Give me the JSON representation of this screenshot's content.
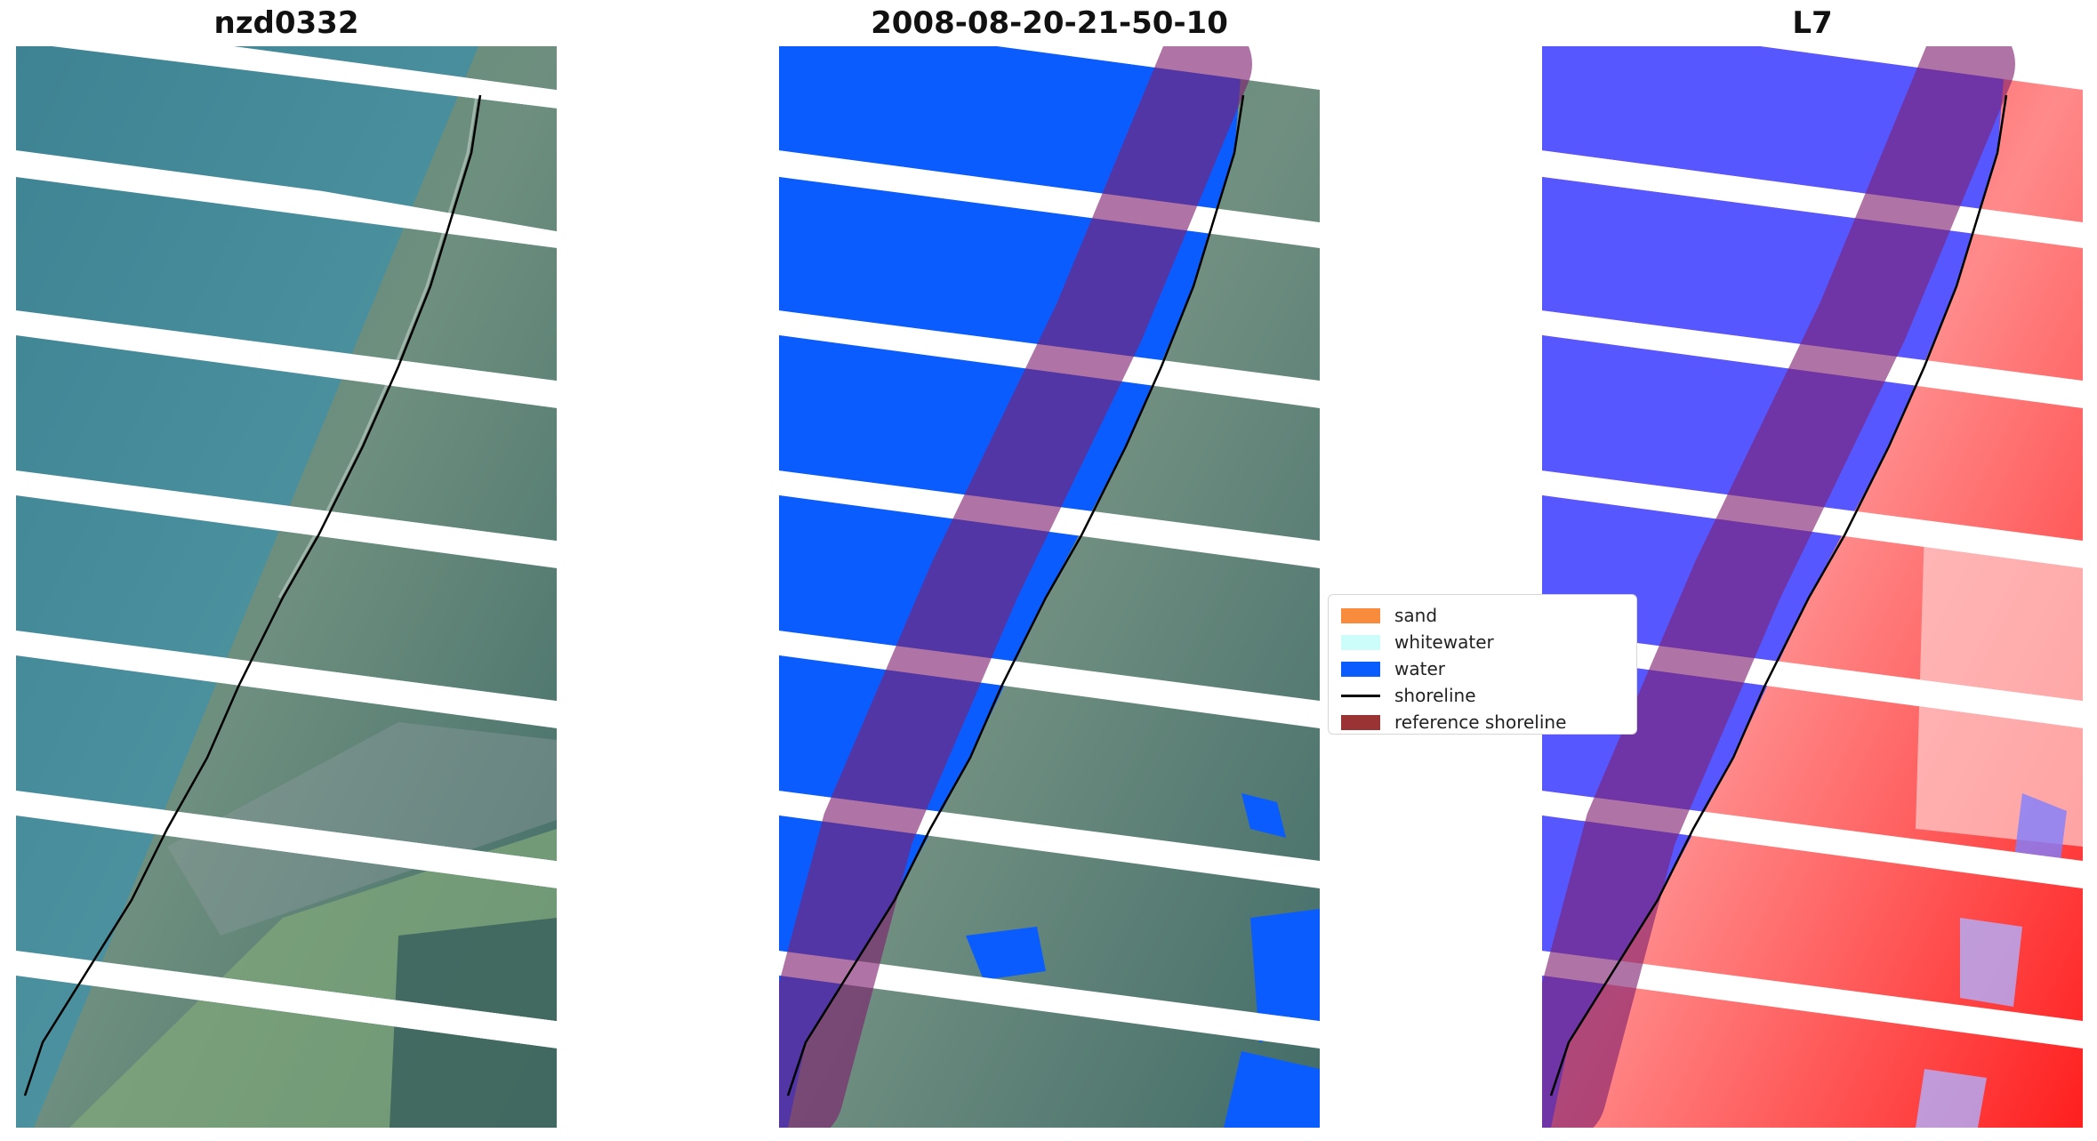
{
  "panels": [
    {
      "title": "nzd0332",
      "type": "rgb-image"
    },
    {
      "title": "2008-08-20-21-50-10",
      "type": "classified-image"
    },
    {
      "title": "L7",
      "type": "index-image"
    }
  ],
  "legend": {
    "items": [
      {
        "label": "sand",
        "color": "#f98b3d",
        "kind": "patch"
      },
      {
        "label": "whitewater",
        "color": "#cdfdfb",
        "kind": "patch"
      },
      {
        "label": "water",
        "color": "#0b5cff",
        "kind": "patch"
      },
      {
        "label": "shoreline",
        "color": "#000000",
        "kind": "line"
      },
      {
        "label": "reference shoreline",
        "color": "#9a3333",
        "kind": "patch"
      }
    ]
  },
  "colors": {
    "sea_rgb": "#4c8f9f",
    "land_rgb": "#4f7a68",
    "water_class": "#0b5cff",
    "buffer_overlay": "#7e1e6e",
    "index_low": "#3d3dff",
    "index_high": "#ff3030",
    "gap": "#ffffff"
  }
}
